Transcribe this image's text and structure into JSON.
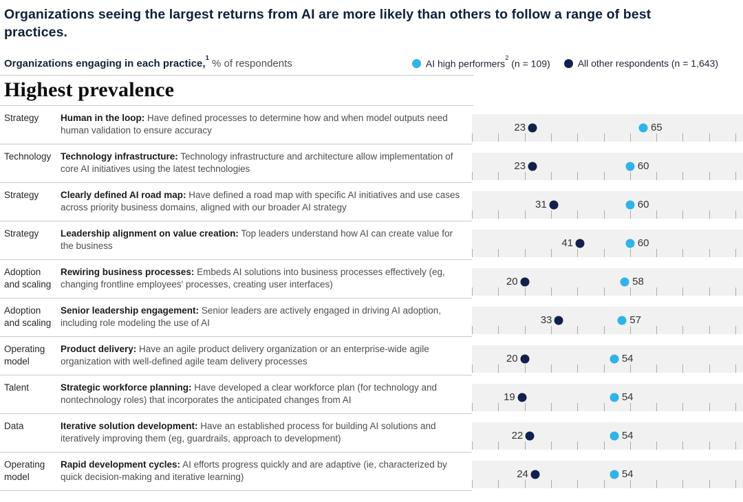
{
  "title": "Organizations seeing the largest returns from AI are more likely than others to follow a range of best practices.",
  "subtitle": {
    "bold": "Organizations engaging in each practice,",
    "sup": "1",
    "rest": " % of respondents"
  },
  "legend": [
    {
      "name": "AI high performers",
      "sup": "2",
      "count": " (n = 109)",
      "color": "#2eb4e8"
    },
    {
      "name": "All other respondents",
      "sup": "",
      "count": " (n = 1,643)",
      "color": "#12204e"
    }
  ],
  "section_heading": "Highest prevalence",
  "chart_data": {
    "type": "scatter",
    "title": "Organizations engaging in each practice, % of respondents",
    "legend_position": "top-right",
    "axis": {
      "min": 0,
      "max": 100,
      "tick_step": 10,
      "grid": "ticks-only"
    },
    "series_names": [
      "AI high performers (n = 109)",
      "All other respondents (n = 1,643)"
    ],
    "colors": {
      "high_performers": "#2eb4e8",
      "all_others": "#12204e",
      "band_bg": "#f1f1f1",
      "tick": "#ababab"
    },
    "rows": [
      {
        "category": "Strategy",
        "practice": "Human in the loop:",
        "description": "Have defined processes to determine how and when model outputs need human validation to ensure accuracy",
        "all_others": 23,
        "high_performers": 65
      },
      {
        "category": "Technology",
        "practice": "Technology infrastructure:",
        "description": "Technology infrastructure and architecture allow implementation of core AI initiatives using the latest technologies",
        "all_others": 23,
        "high_performers": 60
      },
      {
        "category": "Strategy",
        "practice": "Clearly defined AI road map:",
        "description": "Have defined a road map with specific AI initiatives and use cases across priority business domains, aligned with our broader AI strategy",
        "all_others": 31,
        "high_performers": 60
      },
      {
        "category": "Strategy",
        "practice": "Leadership alignment on value creation:",
        "description": "Top leaders understand how AI can create value for the business",
        "all_others": 41,
        "high_performers": 60
      },
      {
        "category": "Adoption\nand scaling",
        "practice": "Rewiring business processes:",
        "description": "Embeds AI solutions into business processes effectively (eg, changing frontline employees' processes, creating user interfaces)",
        "all_others": 20,
        "high_performers": 58
      },
      {
        "category": "Adoption\nand scaling",
        "practice": "Senior leadership engagement:",
        "description": "Senior leaders are actively engaged in driving AI adoption, including role modeling the use of AI",
        "all_others": 33,
        "high_performers": 57
      },
      {
        "category": "Operating\nmodel",
        "practice": "Product delivery:",
        "description": "Have an agile product delivery organization or an enterprise-wide agile organization with well-defined agile team delivery processes",
        "all_others": 20,
        "high_performers": 54
      },
      {
        "category": "Talent",
        "practice": "Strategic workforce planning:",
        "description": "Have developed a clear workforce plan (for technology and nontechnology roles) that incorporates the anticipated changes from AI",
        "all_others": 19,
        "high_performers": 54
      },
      {
        "category": "Data",
        "practice": "Iterative solution development:",
        "description": "Have an established process for building AI solutions and iteratively improving them (eg, guardrails, approach to development)",
        "all_others": 22,
        "high_performers": 54
      },
      {
        "category": "Operating\nmodel",
        "practice": "Rapid development cycles:",
        "description": "AI efforts progress quickly and are adaptive (ie, characterized by quick decision-making and iterative learning)",
        "all_others": 24,
        "high_performers": 54
      }
    ]
  }
}
